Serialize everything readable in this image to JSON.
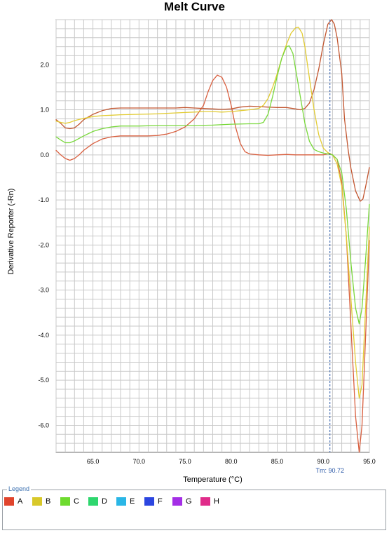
{
  "chart_data": {
    "type": "line",
    "title": "Melt Curve",
    "xlabel": "Temperature (°C)",
    "ylabel": "Derivative Reporter (-Rn)",
    "xlim": [
      61.0,
      95.0
    ],
    "ylim": [
      -6.6,
      3.0
    ],
    "x_ticks": [
      "65.0",
      "70.0",
      "75.0",
      "80.0",
      "85.0",
      "90.0",
      "95.0"
    ],
    "y_ticks": [
      "2.0",
      "1.0",
      "0.0",
      "-1.0",
      "-2.0",
      "-3.0",
      "-4.0",
      "-5.0",
      "-6.0"
    ],
    "grid": true,
    "marker": {
      "x": 90.72,
      "label": "Tm: 90.72"
    },
    "legend": {
      "title": "Legend",
      "placement": "bottom",
      "items": [
        {
          "label": "A",
          "color": "#e0442c"
        },
        {
          "label": "B",
          "color": "#d8c82a"
        },
        {
          "label": "C",
          "color": "#6edb2f"
        },
        {
          "label": "D",
          "color": "#2ed66e"
        },
        {
          "label": "E",
          "color": "#2ab6e6"
        },
        {
          "label": "F",
          "color": "#2c46e0"
        },
        {
          "label": "G",
          "color": "#a42ee6"
        },
        {
          "label": "H",
          "color": "#e02c8a"
        }
      ]
    },
    "series": [
      {
        "color": "#d96040",
        "points": [
          [
            61,
            0.1
          ],
          [
            61.5,
            0.0
          ],
          [
            62,
            -0.08
          ],
          [
            62.5,
            -0.12
          ],
          [
            63,
            -0.08
          ],
          [
            63.5,
            0.0
          ],
          [
            64,
            0.1
          ],
          [
            65,
            0.25
          ],
          [
            66,
            0.35
          ],
          [
            67,
            0.4
          ],
          [
            68,
            0.42
          ],
          [
            70,
            0.42
          ],
          [
            71,
            0.42
          ],
          [
            72,
            0.43
          ],
          [
            73,
            0.46
          ],
          [
            74,
            0.52
          ],
          [
            75,
            0.62
          ],
          [
            76,
            0.8
          ],
          [
            77,
            1.1
          ],
          [
            77.5,
            1.4
          ],
          [
            78,
            1.65
          ],
          [
            78.5,
            1.77
          ],
          [
            79,
            1.72
          ],
          [
            79.5,
            1.5
          ],
          [
            80,
            1.1
          ],
          [
            80.5,
            0.6
          ],
          [
            81,
            0.25
          ],
          [
            81.5,
            0.07
          ],
          [
            82,
            0.02
          ],
          [
            83,
            0.0
          ],
          [
            84,
            -0.01
          ],
          [
            85,
            0.0
          ],
          [
            86,
            0.01
          ],
          [
            87,
            0.0
          ],
          [
            88,
            0.0
          ],
          [
            89,
            0.0
          ],
          [
            90,
            0.0
          ],
          [
            90.7,
            0.03
          ],
          [
            91,
            0.0
          ],
          [
            91.5,
            -0.1
          ],
          [
            92,
            -0.6
          ],
          [
            92.5,
            -1.8
          ],
          [
            93,
            -3.8
          ],
          [
            93.5,
            -5.8
          ],
          [
            93.9,
            -6.6
          ],
          [
            94.2,
            -6.0
          ],
          [
            94.5,
            -4.5
          ],
          [
            95,
            -1.9
          ]
        ]
      },
      {
        "color": "#c25630",
        "points": [
          [
            61,
            0.78
          ],
          [
            61.5,
            0.7
          ],
          [
            62,
            0.6
          ],
          [
            62.5,
            0.58
          ],
          [
            63,
            0.6
          ],
          [
            63.5,
            0.68
          ],
          [
            64,
            0.78
          ],
          [
            65,
            0.9
          ],
          [
            66,
            0.98
          ],
          [
            67,
            1.03
          ],
          [
            68,
            1.04
          ],
          [
            70,
            1.04
          ],
          [
            72,
            1.04
          ],
          [
            74,
            1.04
          ],
          [
            75,
            1.05
          ],
          [
            76,
            1.04
          ],
          [
            78,
            1.02
          ],
          [
            79,
            1.01
          ],
          [
            80,
            1.02
          ],
          [
            81,
            1.06
          ],
          [
            82,
            1.08
          ],
          [
            83,
            1.07
          ],
          [
            84,
            1.06
          ],
          [
            85,
            1.05
          ],
          [
            86,
            1.05
          ],
          [
            87,
            1.02
          ],
          [
            87.5,
            1.0
          ],
          [
            88,
            1.03
          ],
          [
            88.5,
            1.15
          ],
          [
            89,
            1.45
          ],
          [
            89.5,
            1.9
          ],
          [
            90,
            2.45
          ],
          [
            90.5,
            2.9
          ],
          [
            90.9,
            3.0
          ],
          [
            91.2,
            2.9
          ],
          [
            91.5,
            2.6
          ],
          [
            92,
            1.8
          ],
          [
            92.3,
            0.8
          ],
          [
            92.7,
            0.1
          ],
          [
            93,
            -0.3
          ],
          [
            93.5,
            -0.8
          ],
          [
            94,
            -1.03
          ],
          [
            94.3,
            -0.98
          ],
          [
            94.6,
            -0.7
          ],
          [
            95,
            -0.28
          ]
        ]
      },
      {
        "color": "#e2cc34",
        "points": [
          [
            61,
            0.75
          ],
          [
            61.5,
            0.72
          ],
          [
            62,
            0.7
          ],
          [
            62.5,
            0.72
          ],
          [
            63,
            0.76
          ],
          [
            64,
            0.81
          ],
          [
            65,
            0.85
          ],
          [
            66,
            0.87
          ],
          [
            67,
            0.88
          ],
          [
            68,
            0.89
          ],
          [
            70,
            0.9
          ],
          [
            72,
            0.91
          ],
          [
            74,
            0.93
          ],
          [
            75,
            0.94
          ],
          [
            76,
            0.95
          ],
          [
            77,
            0.96
          ],
          [
            78,
            0.96
          ],
          [
            79,
            0.95
          ],
          [
            80,
            0.96
          ],
          [
            81,
            0.98
          ],
          [
            82,
            1.0
          ],
          [
            83,
            1.03
          ],
          [
            83.5,
            1.1
          ],
          [
            84,
            1.25
          ],
          [
            84.5,
            1.5
          ],
          [
            85,
            1.8
          ],
          [
            85.5,
            2.15
          ],
          [
            86,
            2.45
          ],
          [
            86.5,
            2.7
          ],
          [
            87,
            2.82
          ],
          [
            87.3,
            2.83
          ],
          [
            87.7,
            2.7
          ],
          [
            88,
            2.4
          ],
          [
            88.5,
            1.7
          ],
          [
            89,
            1.0
          ],
          [
            89.5,
            0.45
          ],
          [
            90,
            0.15
          ],
          [
            90.5,
            0.05
          ],
          [
            91,
            0.0
          ],
          [
            91.5,
            -0.2
          ],
          [
            92,
            -0.7
          ],
          [
            92.5,
            -1.8
          ],
          [
            93,
            -3.2
          ],
          [
            93.5,
            -4.6
          ],
          [
            93.9,
            -5.4
          ],
          [
            94.2,
            -5.1
          ],
          [
            94.5,
            -3.8
          ],
          [
            95,
            -1.6
          ]
        ]
      },
      {
        "color": "#78d83a",
        "points": [
          [
            61,
            0.4
          ],
          [
            61.5,
            0.33
          ],
          [
            62,
            0.27
          ],
          [
            62.5,
            0.27
          ],
          [
            63,
            0.31
          ],
          [
            64,
            0.42
          ],
          [
            65,
            0.52
          ],
          [
            66,
            0.58
          ],
          [
            67,
            0.62
          ],
          [
            68,
            0.64
          ],
          [
            70,
            0.64
          ],
          [
            72,
            0.65
          ],
          [
            74,
            0.65
          ],
          [
            76,
            0.65
          ],
          [
            78,
            0.66
          ],
          [
            80,
            0.68
          ],
          [
            82,
            0.69
          ],
          [
            83,
            0.69
          ],
          [
            83.5,
            0.72
          ],
          [
            84,
            0.9
          ],
          [
            84.5,
            1.3
          ],
          [
            85,
            1.75
          ],
          [
            85.5,
            2.15
          ],
          [
            86,
            2.4
          ],
          [
            86.3,
            2.42
          ],
          [
            86.7,
            2.25
          ],
          [
            87,
            1.9
          ],
          [
            87.5,
            1.3
          ],
          [
            88,
            0.7
          ],
          [
            88.5,
            0.3
          ],
          [
            89,
            0.12
          ],
          [
            89.5,
            0.07
          ],
          [
            90,
            0.04
          ],
          [
            90.5,
            0.02
          ],
          [
            91,
            0.0
          ],
          [
            91.5,
            -0.1
          ],
          [
            92,
            -0.4
          ],
          [
            92.5,
            -1.2
          ],
          [
            93,
            -2.4
          ],
          [
            93.5,
            -3.4
          ],
          [
            93.9,
            -3.75
          ],
          [
            94.2,
            -3.4
          ],
          [
            94.6,
            -2.3
          ],
          [
            95,
            -1.1
          ]
        ]
      }
    ]
  }
}
